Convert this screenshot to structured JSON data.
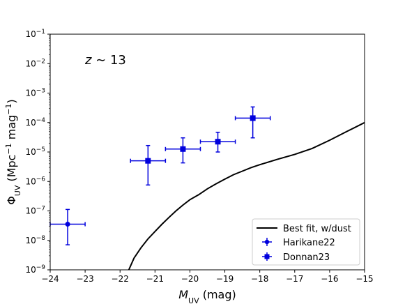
{
  "chart_data": {
    "type": "scatter",
    "annotation": "z ∼ 13",
    "xlabel": "MUV (mag)",
    "ylabel": "ΦUV (Mpc−1 mag−1)",
    "xlim": [
      -24,
      -15
    ],
    "ylim_log10": [
      -9,
      -1
    ],
    "x_ticks": [
      "−24",
      "−23",
      "−22",
      "−21",
      "−20",
      "−19",
      "−18",
      "−17",
      "−16",
      "−15"
    ],
    "y_ticks": [
      "10−9",
      "10−8",
      "10−7",
      "10−6",
      "10−5",
      "10−4",
      "10−3",
      "10−2",
      "10−1"
    ],
    "grid": false,
    "legend_position": "bottom-right",
    "line": {
      "name": "Best fit, w/dust",
      "color": "#000000",
      "x": [
        -21.75,
        -21.6,
        -21.4,
        -21.2,
        -21.0,
        -20.8,
        -20.6,
        -20.4,
        -20.2,
        -20.0,
        -19.75,
        -19.5,
        -19.25,
        -19.0,
        -18.75,
        -18.5,
        -18.25,
        -18.0,
        -17.5,
        -17.0,
        -16.5,
        -16.0,
        -15.5,
        -15.0
      ],
      "log10_y": [
        -9.0,
        -8.6,
        -8.25,
        -7.95,
        -7.7,
        -7.45,
        -7.22,
        -7.0,
        -6.8,
        -6.62,
        -6.45,
        -6.25,
        -6.08,
        -5.92,
        -5.77,
        -5.65,
        -5.53,
        -5.43,
        -5.25,
        -5.08,
        -4.88,
        -4.6,
        -4.3,
        -4.0
      ]
    },
    "series": [
      {
        "name": "Harikane22",
        "color": "#0000dd",
        "marker": "circle",
        "points": [
          {
            "x": -23.5,
            "xerr": 0.5,
            "log10_y": -7.45,
            "log10_ylo": -8.15,
            "log10_yhi": -6.95
          }
        ]
      },
      {
        "name": "Donnan23",
        "color": "#0000dd",
        "marker": "square",
        "points": [
          {
            "x": -21.2,
            "xerr": 0.5,
            "log10_y": -5.3,
            "log10_ylo": -6.12,
            "log10_yhi": -4.78
          },
          {
            "x": -20.2,
            "xerr": 0.5,
            "log10_y": -4.9,
            "log10_ylo": -5.37,
            "log10_yhi": -4.52
          },
          {
            "x": -19.2,
            "xerr": 0.5,
            "log10_y": -4.65,
            "log10_ylo": -5.0,
            "log10_yhi": -4.33
          },
          {
            "x": -18.2,
            "xerr": 0.5,
            "log10_y": -3.85,
            "log10_ylo": -4.52,
            "log10_yhi": -3.47
          }
        ]
      }
    ]
  }
}
